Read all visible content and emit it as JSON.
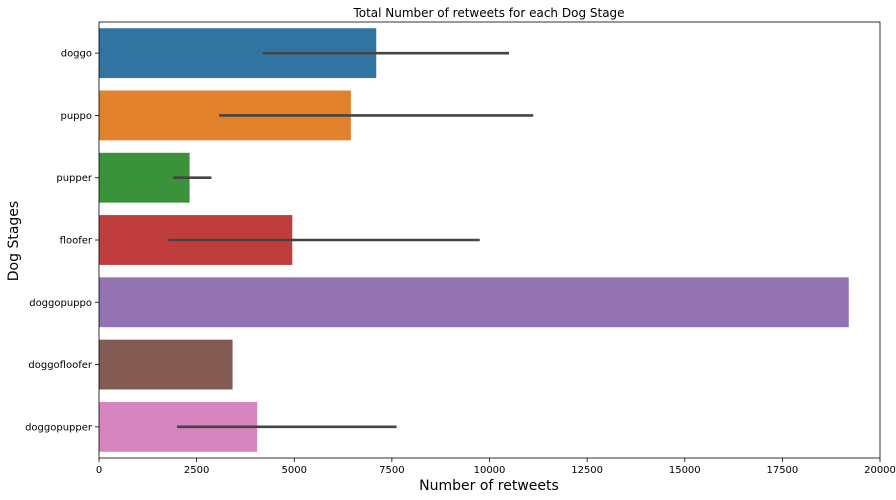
{
  "chart_data": {
    "type": "bar",
    "orientation": "horizontal",
    "title": "Total Number of retweets for each Dog Stage",
    "xlabel": "Number of retweets",
    "ylabel": "Dog Stages",
    "xlim": [
      0,
      20000
    ],
    "x_ticks": [
      0,
      2500,
      5000,
      7500,
      10000,
      12500,
      15000,
      17500,
      20000
    ],
    "x_tick_labels": [
      "0",
      "2500",
      "5000",
      "7500",
      "10000",
      "12500",
      "15000",
      "17500",
      "20000"
    ],
    "grid": false,
    "legend": "none",
    "categories": [
      "doggo",
      "puppo",
      "pupper",
      "floofer",
      "doggopuppo",
      "doggofloofer",
      "doggopupper"
    ],
    "values": [
      7100,
      6450,
      2320,
      4950,
      19200,
      3420,
      4050
    ],
    "error_low": [
      4200,
      3080,
      1900,
      1780,
      null,
      null,
      2000
    ],
    "error_high": [
      10500,
      11120,
      2880,
      9750,
      null,
      null,
      7620
    ],
    "colors": [
      "#3274a1",
      "#e1812c",
      "#3a923a",
      "#c03d3e",
      "#9372b2",
      "#845b53",
      "#d684bd"
    ]
  }
}
